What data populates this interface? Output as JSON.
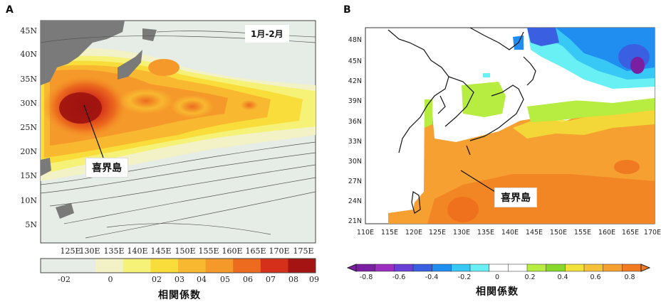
{
  "panelA": {
    "letter": "A",
    "season_label": "1月-2月",
    "callout": "喜界島",
    "lat_ticks": [
      "45N",
      "40N",
      "35N",
      "30N",
      "25N",
      "20N",
      "15N",
      "10N",
      "5N"
    ],
    "lon_ticks": [
      "125E",
      "130E",
      "135E",
      "140E",
      "145E",
      "150E",
      "155E",
      "160E",
      "165E",
      "170E",
      "175E"
    ],
    "colorbar_ticks": [
      "-02",
      "0",
      "02",
      "03",
      "04",
      "05",
      "06",
      "07",
      "08",
      "09"
    ],
    "colorbar_title": "相関係数",
    "colors": [
      "#e6ede6",
      "#e6ede6",
      "#f3f1c6",
      "#f6f277",
      "#f9dd3b",
      "#f8b830",
      "#f59a2a",
      "#ec6b1e",
      "#d4301a",
      "#a31412"
    ]
  },
  "panelB": {
    "letter": "B",
    "callout": "喜界島",
    "lat_ticks": [
      "48N",
      "45N",
      "42N",
      "39N",
      "36N",
      "33N",
      "30N",
      "27N",
      "24N",
      "21N"
    ],
    "lon_ticks": [
      "110E",
      "115E",
      "120E",
      "125E",
      "130E",
      "135E",
      "140E",
      "145E",
      "150E",
      "155E",
      "160E",
      "165E",
      "170E"
    ],
    "colorbar_ticks": [
      "-0.8",
      "-0.6",
      "-0.4",
      "-0.2",
      "0",
      "0.2",
      "0.4",
      "0.6",
      "0.8"
    ],
    "colorbar_title": "相関係数",
    "colors": [
      "#7a1fa2",
      "#9c2fc0",
      "#6a3fd6",
      "#3a5fe0",
      "#1f8ef0",
      "#38c8f5",
      "#68f0f5",
      "#ffffff",
      "#ffffff",
      "#b7ec40",
      "#88d82b",
      "#f2e13a",
      "#f5c23a",
      "#f5a030",
      "#f27a20"
    ]
  }
}
